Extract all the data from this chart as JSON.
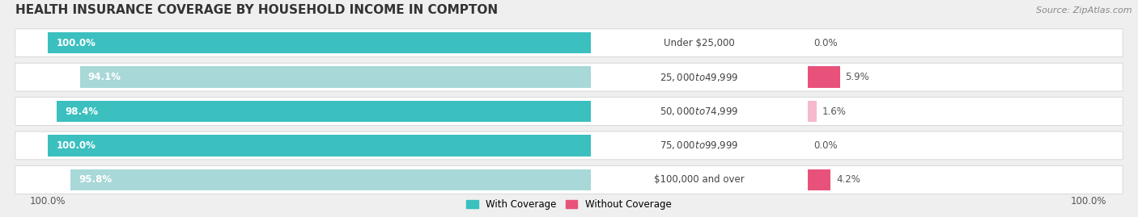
{
  "title": "HEALTH INSURANCE COVERAGE BY HOUSEHOLD INCOME IN COMPTON",
  "source": "Source: ZipAtlas.com",
  "categories": [
    "Under $25,000",
    "$25,000 to $49,999",
    "$50,000 to $74,999",
    "$75,000 to $99,999",
    "$100,000 and over"
  ],
  "with_coverage": [
    100.0,
    94.1,
    98.4,
    100.0,
    95.8
  ],
  "without_coverage": [
    0.0,
    5.9,
    1.6,
    0.0,
    4.2
  ],
  "with_colors": [
    "#3bbfbf",
    "#a8d8d8",
    "#3bbfbf",
    "#3bbfbf",
    "#a8d8d8"
  ],
  "without_colors": [
    "#f5b8ce",
    "#e8527a",
    "#f5b8ce",
    "#f5b8ce",
    "#e8527a"
  ],
  "background_color": "#efefef",
  "row_bg_color": "#ffffff",
  "legend_with_color": "#3bbfbf",
  "legend_without_color": "#e8527a",
  "legend_with": "With Coverage",
  "legend_without": "Without Coverage",
  "title_fontsize": 11,
  "label_fontsize": 8.5,
  "value_fontsize": 8.5,
  "source_fontsize": 8
}
